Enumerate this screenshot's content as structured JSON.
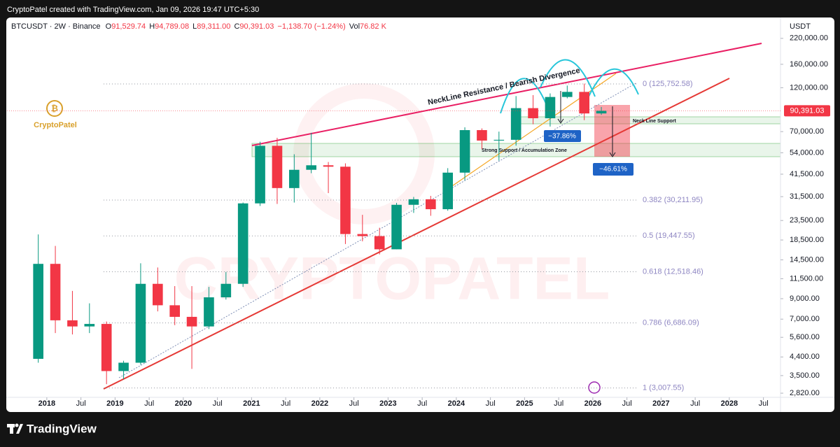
{
  "header": {
    "credit": "CryptoPatel created with TradingView.com, Jan 09, 2026 19:47 UTC+5:30"
  },
  "legend": {
    "symbol": "BTCUSDT · 2W · Binance",
    "ohlc": [
      {
        "label": "O",
        "value": "91,529.74"
      },
      {
        "label": "H",
        "value": "94,789.08"
      },
      {
        "label": "L",
        "value": "89,311.00"
      },
      {
        "label": "C",
        "value": "90,391.03"
      }
    ],
    "change": "−1,138.70 (−1.24%)",
    "volume": {
      "label": "Vol",
      "value": "76.82 K"
    }
  },
  "logo": "CryptoPatel",
  "watermark": "CRYPTOPATEL",
  "footer": "TradingView",
  "chart_data": {
    "type": "candlestick",
    "log_scale": true,
    "y_axis_label": "USDT",
    "up_color": "#089981",
    "down_color": "#f23645",
    "x": [
      "2017-10",
      "2018-01",
      "2018-04",
      "2018-07",
      "2018-10",
      "2019-01",
      "2019-04",
      "2019-07",
      "2019-10",
      "2020-01",
      "2020-04",
      "2020-07",
      "2020-10",
      "2021-01",
      "2021-04",
      "2021-07",
      "2021-10",
      "2022-01",
      "2022-04",
      "2022-07",
      "2022-10",
      "2023-01",
      "2023-04",
      "2023-07",
      "2023-10",
      "2024-01",
      "2024-04",
      "2024-07",
      "2024-10",
      "2025-01",
      "2025-04",
      "2025-07",
      "2025-10",
      "2026-01"
    ],
    "open": [
      4300,
      13800,
      6900,
      6400,
      6600,
      3700,
      4100,
      10800,
      8300,
      7200,
      6400,
      9150,
      10800,
      29000,
      58800,
      35000,
      43800,
      46300,
      45500,
      19900,
      19400,
      16500,
      28500,
      30500,
      27000,
      42300,
      71300,
      62700,
      63300,
      93400,
      82500,
      107100,
      114000,
      87500
    ],
    "high": [
      19800,
      17200,
      9900,
      8500,
      6800,
      4200,
      13900,
      13200,
      10500,
      10500,
      10400,
      12500,
      29300,
      61800,
      64900,
      53000,
      69000,
      48200,
      47400,
      25200,
      21500,
      29200,
      31400,
      31800,
      44700,
      73800,
      72800,
      70000,
      108300,
      109600,
      111900,
      123200,
      126200,
      94789.08
    ],
    "low": [
      4100,
      5900,
      5800,
      5900,
      3150,
      3350,
      4000,
      7700,
      6500,
      3800,
      6200,
      8900,
      10400,
      28100,
      28800,
      29300,
      42000,
      32900,
      17600,
      18200,
      15500,
      16500,
      25800,
      24900,
      26500,
      38500,
      56500,
      49000,
      58900,
      76600,
      74500,
      105300,
      80600,
      86000
    ],
    "close": [
      13800,
      6900,
      6400,
      6600,
      3700,
      4100,
      10800,
      8300,
      7200,
      6400,
      9150,
      10800,
      29000,
      58800,
      35000,
      43800,
      46300,
      45500,
      19900,
      19400,
      16500,
      28500,
      30500,
      27000,
      42300,
      71300,
      62700,
      63300,
      93400,
      82500,
      107100,
      114000,
      87500,
      90391.03
    ],
    "xlim": [
      "2017-06",
      "2028-10"
    ],
    "xticks": [
      {
        "value": "2018-01",
        "label": "2018"
      },
      {
        "value": "2018-07",
        "label": "Jul"
      },
      {
        "value": "2019-01",
        "label": "2019"
      },
      {
        "value": "2019-07",
        "label": "Jul"
      },
      {
        "value": "2020-01",
        "label": "2020"
      },
      {
        "value": "2020-07",
        "label": "Jul"
      },
      {
        "value": "2021-01",
        "label": "2021"
      },
      {
        "value": "2021-07",
        "label": "Jul"
      },
      {
        "value": "2022-01",
        "label": "2022"
      },
      {
        "value": "2022-07",
        "label": "Jul"
      },
      {
        "value": "2023-01",
        "label": "2023"
      },
      {
        "value": "2023-07",
        "label": "Jul"
      },
      {
        "value": "2024-01",
        "label": "2024"
      },
      {
        "value": "2024-07",
        "label": "Jul"
      },
      {
        "value": "2025-01",
        "label": "2025"
      },
      {
        "value": "2025-07",
        "label": "Jul"
      },
      {
        "value": "2026-01",
        "label": "2026"
      },
      {
        "value": "2026-07",
        "label": "Jul"
      },
      {
        "value": "2027-01",
        "label": "2027"
      },
      {
        "value": "2027-07",
        "label": "Jul"
      },
      {
        "value": "2028-01",
        "label": "2028"
      },
      {
        "value": "2028-07",
        "label": "Jul"
      }
    ],
    "ylim": [
      2680,
      277000
    ],
    "yticks": [
      {
        "value": 2820,
        "label": "2,820.00"
      },
      {
        "value": 3500,
        "label": "3,500.00"
      },
      {
        "value": 4400,
        "label": "4,400.00"
      },
      {
        "value": 5600,
        "label": "5,600.00"
      },
      {
        "value": 7000,
        "label": "7,000.00"
      },
      {
        "value": 9000,
        "label": "9,000.00"
      },
      {
        "value": 11500,
        "label": "11,500.00"
      },
      {
        "value": 14500,
        "label": "14,500.00"
      },
      {
        "value": 18500,
        "label": "18,500.00"
      },
      {
        "value": 23500,
        "label": "23,500.00"
      },
      {
        "value": 31500,
        "label": "31,500.00"
      },
      {
        "value": 41500,
        "label": "41,500.00"
      },
      {
        "value": 54000,
        "label": "54,000.00"
      },
      {
        "value": 70000,
        "label": "70,000.00"
      },
      {
        "value": 120000,
        "label": "120,000.00"
      },
      {
        "value": 160000,
        "label": "160,000.00"
      },
      {
        "value": 220000,
        "label": "220,000.00"
      }
    ],
    "last_price": {
      "value": 90391.03,
      "label": "90,391.03"
    },
    "fib_levels": [
      {
        "price": 125752.58,
        "label": "0 (125,752.58)"
      },
      {
        "price": 30211.95,
        "label": "0.382 (30,211.95)"
      },
      {
        "price": 19447.55,
        "label": "0.5 (19,447.55)"
      },
      {
        "price": 12518.46,
        "label": "0.618 (12,518.46)"
      },
      {
        "price": 6686.09,
        "label": "0.786 (6,686.09)"
      },
      {
        "price": 3007.55,
        "label": "1 (3,007.55)"
      }
    ],
    "annotations": {
      "neckline": "NeckLine Resistance / Bearish Divergence",
      "neck_support": "Neck Line Support",
      "strong_support": "Strong Support / Accumulation Zone",
      "drop_1": "−37.86%",
      "drop_2": "−46.61%"
    }
  }
}
